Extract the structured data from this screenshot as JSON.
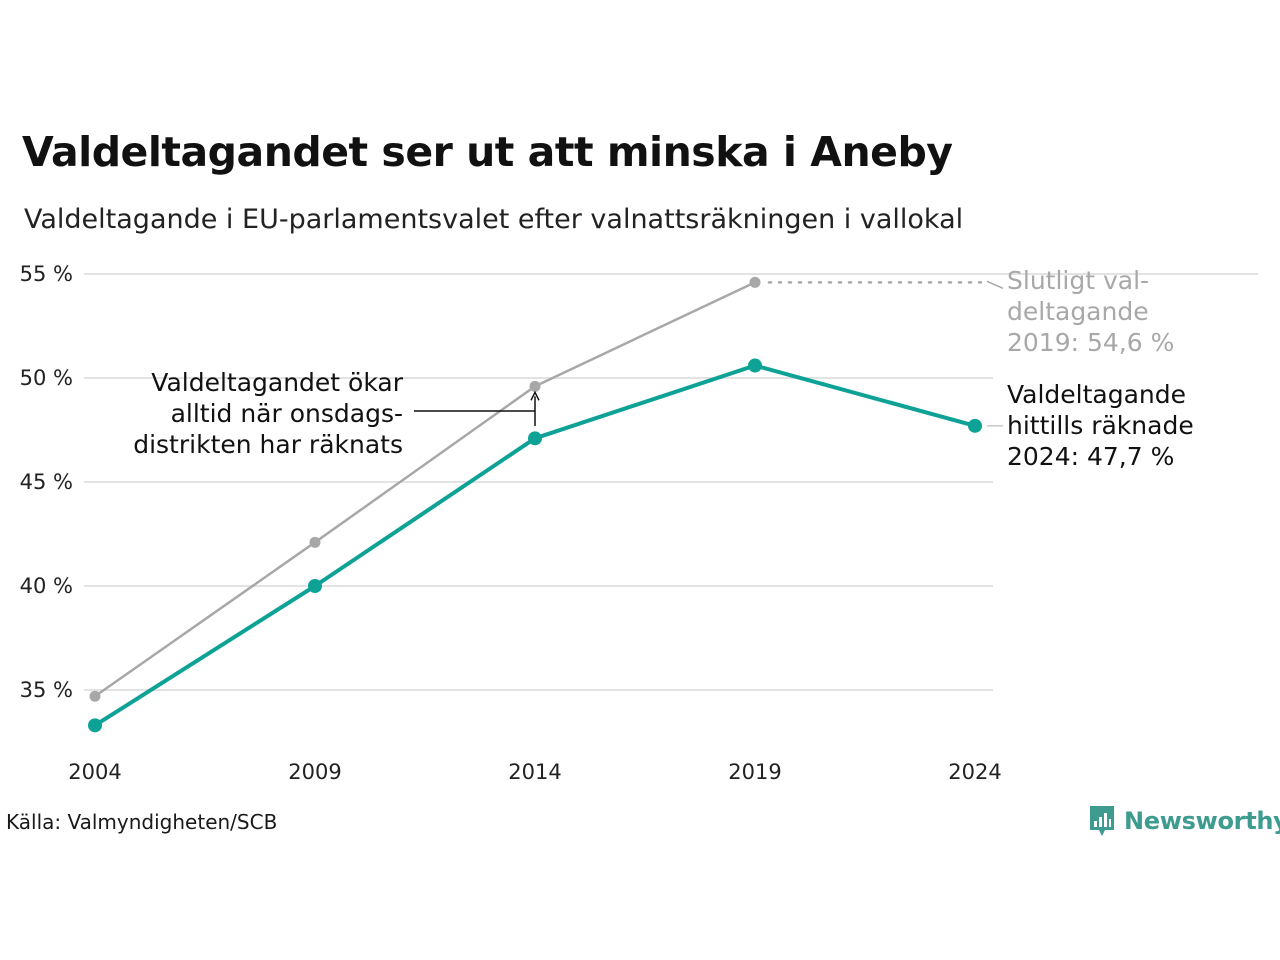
{
  "title": "Valdeltagandet ser ut att minska i Aneby",
  "subtitle": "Valdeltagande i EU-parlamentsvalet efter valnattsräkningen i vallokal",
  "source": "Källa: Valmyndigheten/SCB",
  "brand": {
    "name": "Newsworthy",
    "icon": "newsworthy-logo-icon",
    "color": "#3e9b8f"
  },
  "chart_data": {
    "type": "line",
    "x": [
      2004,
      2009,
      2014,
      2019,
      2024
    ],
    "x_tick_labels": [
      "2004",
      "2009",
      "2014",
      "2019",
      "2024"
    ],
    "y_ticks": [
      35,
      40,
      45,
      50,
      55
    ],
    "y_tick_labels": [
      "35 %",
      "40 %",
      "45 %",
      "50 %",
      "55 %"
    ],
    "ylim": [
      32,
      56.4
    ],
    "grid": true,
    "series": [
      {
        "key": "final",
        "color": "#a8a8a8",
        "values": [
          34.7,
          42.1,
          49.6,
          54.6,
          null
        ]
      },
      {
        "key": "counted",
        "color": "#0ea296",
        "values": [
          33.3,
          40.0,
          47.1,
          50.6,
          47.7
        ]
      }
    ],
    "annotations": {
      "final_label": [
        "Slutligt val-",
        "deltagande",
        "2019: 54,6 %"
      ],
      "counted_label": [
        "Valdeltagande",
        "hittills räknade",
        "2024: 47,7 %"
      ],
      "note": [
        "Valdeltagandet ökar",
        "alltid när onsdags-",
        "distrikten har räknats"
      ]
    }
  }
}
